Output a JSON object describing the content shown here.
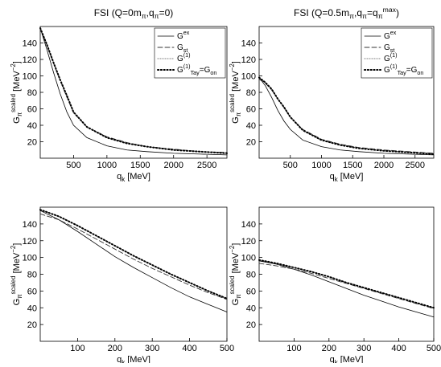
{
  "chart_data": [
    {
      "type": "line",
      "title": [
        {
          "t": "FSI (Q=0m"
        },
        {
          "t": "π",
          "s": "sub"
        },
        {
          "t": ",q"
        },
        {
          "t": "π",
          "s": "sub"
        },
        {
          "t": "=0)"
        }
      ],
      "xlabel": [
        {
          "t": "q"
        },
        {
          "t": "k",
          "s": "sub"
        },
        {
          "t": " [MeV]"
        }
      ],
      "ylabel": [
        {
          "t": "G"
        },
        {
          "t": "π",
          "s": "sub"
        },
        {
          "t": "scaled",
          "s": "sup"
        },
        {
          "t": " [MeV"
        },
        {
          "t": "−2",
          "s": "sup"
        },
        {
          "t": "]"
        }
      ],
      "x": [
        0,
        100,
        200,
        300,
        400,
        500,
        700,
        1000,
        1300,
        1600,
        2000,
        2400,
        2800
      ],
      "xlim": [
        0,
        2800
      ],
      "xticks": [
        500,
        1000,
        1500,
        2000,
        2500
      ],
      "ylim": [
        0,
        160
      ],
      "yticks": [
        20,
        40,
        60,
        80,
        100,
        120,
        140
      ],
      "legend": "upper right",
      "series": [
        {
          "name": [
            {
              "t": "G"
            },
            {
              "t": "ex",
              "s": "sup"
            }
          ],
          "color": "#000000",
          "line_style": "solid",
          "values": [
            158,
            132,
            104,
            78,
            56,
            40,
            25,
            15,
            10,
            8,
            6,
            5,
            4
          ]
        },
        {
          "name": [
            {
              "t": "G"
            },
            {
              "t": "st",
              "s": "sub"
            }
          ],
          "color": "#333333",
          "line_style": "dashed",
          "values": [
            158,
            137,
            115,
            94,
            74,
            55,
            38,
            26,
            19,
            14,
            11,
            8,
            7
          ]
        },
        {
          "name": [
            {
              "t": "G"
            },
            {
              "t": "(1)",
              "s": "sup"
            }
          ],
          "color": "#999999",
          "line_style": "dotted",
          "values": [
            158,
            138,
            116,
            95,
            76,
            56,
            38,
            25,
            18,
            14,
            10,
            8,
            6
          ]
        },
        {
          "name": [
            {
              "t": "G"
            },
            {
              "t": "(1)",
              "s": "sup"
            },
            {
              "t": "Tay",
              "s": "sub"
            },
            {
              "t": "=G"
            },
            {
              "t": "on",
              "s": "sub"
            }
          ],
          "color": "#000000",
          "line_style": "dots",
          "values": [
            158,
            138,
            116,
            95,
            76,
            56,
            38,
            25,
            18,
            14,
            10,
            8,
            6
          ]
        }
      ]
    },
    {
      "type": "line",
      "title": [
        {
          "t": "FSI (Q=0.5m"
        },
        {
          "t": "π",
          "s": "sub"
        },
        {
          "t": ",q"
        },
        {
          "t": "π",
          "s": "sub"
        },
        {
          "t": "=q"
        },
        {
          "t": "π",
          "s": "sub"
        },
        {
          "t": "max",
          "s": "sup"
        },
        {
          "t": ")"
        }
      ],
      "xlabel": [
        {
          "t": "q"
        },
        {
          "t": "k",
          "s": "sub"
        },
        {
          "t": " [MeV]"
        }
      ],
      "ylabel": [
        {
          "t": "G"
        },
        {
          "t": "π",
          "s": "sub"
        },
        {
          "t": "scaled",
          "s": "sup"
        },
        {
          "t": " [MeV"
        },
        {
          "t": "−2",
          "s": "sup"
        },
        {
          "t": "]"
        }
      ],
      "x": [
        0,
        100,
        200,
        300,
        400,
        500,
        700,
        1000,
        1300,
        1600,
        2000,
        2400,
        2800
      ],
      "xlim": [
        0,
        2800
      ],
      "xticks": [
        500,
        1000,
        1500,
        2000,
        2500
      ],
      "ylim": [
        0,
        160
      ],
      "yticks": [
        20,
        40,
        60,
        80,
        100,
        120,
        140
      ],
      "legend": "upper right",
      "series": [
        {
          "name": [
            {
              "t": "G"
            },
            {
              "t": "ex",
              "s": "sup"
            }
          ],
          "color": "#000000",
          "line_style": "solid",
          "values": [
            98,
            88,
            74,
            58,
            45,
            35,
            22,
            14,
            10,
            8,
            6,
            5,
            4
          ]
        },
        {
          "name": [
            {
              "t": "G"
            },
            {
              "t": "st",
              "s": "sub"
            }
          ],
          "color": "#333333",
          "line_style": "dashed",
          "values": [
            96,
            91,
            83,
            72,
            61,
            50,
            35,
            23,
            17,
            13,
            10,
            8,
            6
          ]
        },
        {
          "name": [
            {
              "t": "G"
            },
            {
              "t": "(1)",
              "s": "sup"
            }
          ],
          "color": "#999999",
          "line_style": "dotted",
          "values": [
            98,
            92,
            84,
            72,
            62,
            50,
            34,
            22,
            16,
            12,
            9,
            7,
            5
          ]
        },
        {
          "name": [
            {
              "t": "G"
            },
            {
              "t": "(1)",
              "s": "sup"
            },
            {
              "t": "Tay",
              "s": "sub"
            },
            {
              "t": "=G"
            },
            {
              "t": "on",
              "s": "sub"
            }
          ],
          "color": "#000000",
          "line_style": "dots",
          "values": [
            98,
            92,
            84,
            72,
            62,
            50,
            34,
            22,
            16,
            12,
            9,
            7,
            5
          ]
        }
      ]
    },
    {
      "type": "line",
      "xlabel": [
        {
          "t": "q"
        },
        {
          "t": "k",
          "s": "sub"
        },
        {
          "t": " [MeV]"
        }
      ],
      "ylabel": [
        {
          "t": "G"
        },
        {
          "t": "π",
          "s": "sub"
        },
        {
          "t": "scaled",
          "s": "sup"
        },
        {
          "t": " [MeV"
        },
        {
          "t": "−2",
          "s": "sup"
        },
        {
          "t": "]"
        }
      ],
      "x": [
        0,
        50,
        100,
        150,
        200,
        250,
        300,
        350,
        400,
        450,
        500
      ],
      "xlim": [
        0,
        500
      ],
      "xticks": [
        100,
        200,
        300,
        400,
        500
      ],
      "ylim": [
        0,
        160
      ],
      "yticks": [
        20,
        40,
        60,
        80,
        100,
        120,
        140
      ],
      "series": [
        {
          "color": "#000000",
          "line_style": "solid",
          "values": [
            156,
            145,
            131,
            116,
            101,
            88,
            76,
            64,
            53,
            44,
            35
          ]
        },
        {
          "color": "#333333",
          "line_style": "dashed",
          "values": [
            152,
            145,
            134,
            122,
            110,
            98,
            87,
            77,
            67,
            58,
            50
          ]
        },
        {
          "color": "#999999",
          "line_style": "dotted",
          "values": [
            157,
            149,
            138,
            126,
            114,
            102,
            91,
            80,
            70,
            60,
            51
          ]
        },
        {
          "color": "#000000",
          "line_style": "dots",
          "values": [
            157,
            149,
            138,
            126,
            114,
            102,
            91,
            80,
            70,
            60,
            51
          ]
        }
      ]
    },
    {
      "type": "line",
      "xlabel": [
        {
          "t": "q"
        },
        {
          "t": "k",
          "s": "sub"
        },
        {
          "t": " [MeV]"
        }
      ],
      "ylabel": [
        {
          "t": "G"
        },
        {
          "t": "π",
          "s": "sub"
        },
        {
          "t": "scaled",
          "s": "sup"
        },
        {
          "t": " [MeV"
        },
        {
          "t": "−2",
          "s": "sup"
        },
        {
          "t": "]"
        }
      ],
      "x": [
        0,
        50,
        100,
        150,
        200,
        250,
        300,
        350,
        400,
        450,
        500
      ],
      "xlim": [
        0,
        500
      ],
      "xticks": [
        100,
        200,
        300,
        400,
        500
      ],
      "ylim": [
        0,
        160
      ],
      "yticks": [
        20,
        40,
        60,
        80,
        100,
        120,
        140
      ],
      "series": [
        {
          "color": "#000000",
          "line_style": "solid",
          "values": [
            96,
            92,
            86,
            79,
            71,
            63,
            55,
            48,
            41,
            35,
            29
          ]
        },
        {
          "color": "#333333",
          "line_style": "dashed",
          "values": [
            93,
            90,
            86,
            81,
            75,
            69,
            63,
            57,
            51,
            45,
            39
          ]
        },
        {
          "color": "#999999",
          "line_style": "dotted",
          "values": [
            97,
            93,
            88,
            83,
            77,
            70,
            64,
            58,
            52,
            46,
            40
          ]
        },
        {
          "color": "#000000",
          "line_style": "dots",
          "values": [
            97,
            93,
            88,
            83,
            77,
            70,
            64,
            58,
            52,
            46,
            40
          ]
        }
      ]
    }
  ]
}
